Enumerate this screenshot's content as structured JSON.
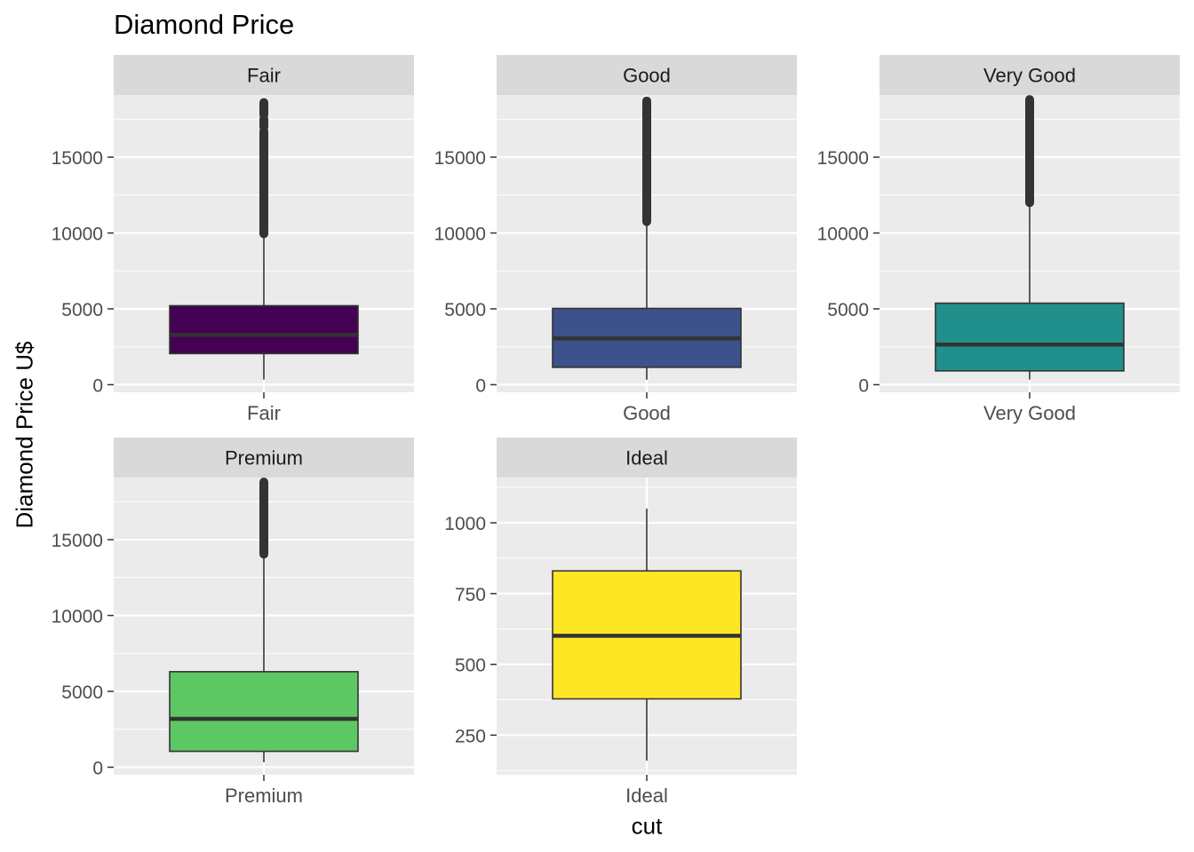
{
  "chart_data": {
    "type": "boxplot",
    "title": "Diamond Price",
    "xlabel": "cut",
    "ylabel": "Diamond Price U$",
    "facet_by": "cut",
    "facet_scales": "free",
    "panels": [
      {
        "strip": "Fair",
        "category": "Fair",
        "fill": "#440154",
        "yticks": [
          0,
          5000,
          10000,
          15000
        ],
        "ylim": [
          -500,
          19100
        ],
        "box": {
          "min": 337,
          "q1": 2050,
          "median": 3282,
          "q3": 5206,
          "max": 9900
        },
        "outliers": {
          "from": 9950,
          "to": 18600,
          "gaps": [
            [
              16700,
              17000
            ],
            [
              17500,
              17800
            ]
          ]
        }
      },
      {
        "strip": "Good",
        "category": "Good",
        "fill": "#3B528B",
        "yticks": [
          0,
          5000,
          10000,
          15000
        ],
        "ylim": [
          -500,
          19100
        ],
        "box": {
          "min": 327,
          "q1": 1145,
          "median": 3050,
          "q3": 5028,
          "max": 10700
        },
        "outliers": {
          "from": 10750,
          "to": 18700,
          "gaps": []
        }
      },
      {
        "strip": "Very Good",
        "category": "Very Good",
        "fill": "#21908C",
        "yticks": [
          0,
          5000,
          10000,
          15000
        ],
        "ylim": [
          -500,
          19100
        ],
        "box": {
          "min": 336,
          "q1": 912,
          "median": 2648,
          "q3": 5373,
          "max": 11950
        },
        "outliers": {
          "from": 12000,
          "to": 18800,
          "gaps": []
        }
      },
      {
        "strip": "Premium",
        "category": "Premium",
        "fill": "#5DC863",
        "yticks": [
          0,
          5000,
          10000,
          15000
        ],
        "ylim": [
          -500,
          19100
        ],
        "box": {
          "min": 326,
          "q1": 1046,
          "median": 3185,
          "q3": 6296,
          "max": 14000
        },
        "outliers": {
          "from": 14050,
          "to": 18800,
          "gaps": []
        }
      },
      {
        "strip": "Ideal",
        "category": "Ideal",
        "fill": "#FDE725",
        "yticks": [
          250,
          500,
          750,
          1000
        ],
        "ylim": [
          110,
          1160
        ],
        "box": {
          "min": 160,
          "q1": 378,
          "median": 601,
          "q3": 830,
          "max": 1050
        },
        "outliers": null
      }
    ]
  }
}
